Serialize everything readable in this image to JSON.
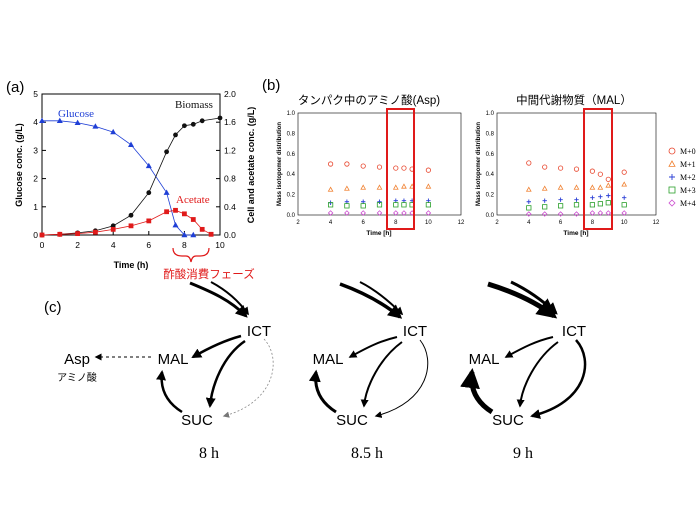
{
  "panel_a": {
    "label": "(a)",
    "chart_data": {
      "type": "line",
      "xlabel": "Time (h)",
      "ylabel_left": "Glucose conc. (g/L)",
      "ylabel_right": "Cell and acetate conc. (g/L)",
      "xlim": [
        0,
        10
      ],
      "ylim_left": [
        0,
        5
      ],
      "ylim_right": [
        0,
        2.0
      ],
      "x_ticks": [
        "0",
        "2",
        "4",
        "6",
        "8",
        "10"
      ],
      "y_left_ticks": [
        "0",
        "1",
        "2",
        "3",
        "4",
        "5"
      ],
      "y_right_ticks": [
        "0.0",
        "0.4",
        "0.8",
        "1.2",
        "1.6",
        "2.0"
      ],
      "series": [
        {
          "name": "Glucose",
          "axis": "left",
          "color": "#1f3fd6",
          "marker": "triangle",
          "x": [
            0,
            1,
            2,
            3,
            4,
            5,
            6,
            7,
            7.5,
            8,
            8.5
          ],
          "y": [
            4.05,
            4.05,
            3.98,
            3.85,
            3.65,
            3.2,
            2.45,
            1.5,
            0.35,
            0.0,
            0.0
          ]
        },
        {
          "name": "Biomass",
          "axis": "right",
          "color": "#111111",
          "marker": "circle",
          "x": [
            0,
            1,
            2,
            3,
            4,
            5,
            6,
            7,
            7.5,
            8,
            8.5,
            9,
            10
          ],
          "y": [
            0.0,
            0.01,
            0.03,
            0.06,
            0.13,
            0.28,
            0.6,
            1.18,
            1.42,
            1.55,
            1.57,
            1.62,
            1.66
          ]
        },
        {
          "name": "Acetate",
          "axis": "right",
          "color": "#e01a1a",
          "marker": "square",
          "x": [
            0,
            1,
            2,
            3,
            4,
            5,
            6,
            7,
            7.5,
            8,
            8.5,
            9,
            9.5
          ],
          "y": [
            0.0,
            0.01,
            0.02,
            0.04,
            0.08,
            0.13,
            0.2,
            0.33,
            0.35,
            0.3,
            0.22,
            0.08,
            0.01
          ]
        }
      ]
    },
    "annotation": "酢酸消費フェーズ"
  },
  "panel_b": {
    "label": "(b)",
    "legend": [
      "M+0",
      "M+1",
      "M+2",
      "M+3",
      "M+4"
    ],
    "legend_colors": [
      "#e8452c",
      "#f08030",
      "#2b3fd6",
      "#2aa02a",
      "#cc4fd0"
    ],
    "charts": [
      {
        "title": "タンパク中のアミノ酸(Asp)",
        "chart_data": {
          "type": "scatter",
          "xlabel": "Time [h]",
          "ylabel": "Mass isotopomer distribution",
          "xlim": [
            2,
            12
          ],
          "ylim": [
            0,
            1.0
          ],
          "x_ticks": [
            "2",
            "4",
            "6",
            "8",
            "10",
            "12"
          ],
          "y_ticks": [
            "0.0",
            "0.2",
            "0.4",
            "0.6",
            "0.8",
            "1.0"
          ],
          "x": [
            4,
            5,
            6,
            7,
            8,
            8.5,
            9,
            10
          ],
          "series": [
            {
              "name": "M+0",
              "values": [
                0.5,
                0.5,
                0.48,
                0.47,
                0.46,
                0.46,
                0.45,
                0.44
              ]
            },
            {
              "name": "M+1",
              "values": [
                0.25,
                0.26,
                0.27,
                0.27,
                0.27,
                0.28,
                0.28,
                0.28
              ]
            },
            {
              "name": "M+2",
              "values": [
                0.12,
                0.13,
                0.13,
                0.13,
                0.14,
                0.14,
                0.14,
                0.14
              ]
            },
            {
              "name": "M+3",
              "values": [
                0.1,
                0.09,
                0.09,
                0.1,
                0.1,
                0.1,
                0.1,
                0.1
              ]
            },
            {
              "name": "M+4",
              "values": [
                0.02,
                0.02,
                0.02,
                0.02,
                0.02,
                0.02,
                0.02,
                0.02
              ]
            }
          ],
          "highlight_x": [
            7.6,
            9.0
          ]
        }
      },
      {
        "title": "中間代謝物質（MAL）",
        "chart_data": {
          "type": "scatter",
          "xlabel": "Time [h]",
          "ylabel": "Mass isotopomer distribution",
          "xlim": [
            2,
            12
          ],
          "ylim": [
            0,
            1.0
          ],
          "x_ticks": [
            "2",
            "4",
            "6",
            "8",
            "10",
            "12"
          ],
          "y_ticks": [
            "0.0",
            "0.2",
            "0.4",
            "0.6",
            "0.8",
            "1.0"
          ],
          "x": [
            4,
            5,
            6,
            7,
            8,
            8.5,
            9,
            10
          ],
          "series": [
            {
              "name": "M+0",
              "values": [
                0.51,
                0.47,
                0.46,
                0.45,
                0.43,
                0.4,
                0.35,
                0.42
              ]
            },
            {
              "name": "M+1",
              "values": [
                0.25,
                0.26,
                0.27,
                0.27,
                0.27,
                0.27,
                0.29,
                0.3
              ]
            },
            {
              "name": "M+2",
              "values": [
                0.13,
                0.14,
                0.15,
                0.15,
                0.17,
                0.18,
                0.19,
                0.17
              ]
            },
            {
              "name": "M+3",
              "values": [
                0.07,
                0.08,
                0.09,
                0.1,
                0.1,
                0.11,
                0.12,
                0.1
              ]
            },
            {
              "name": "M+4",
              "values": [
                0.01,
                0.01,
                0.01,
                0.01,
                0.02,
                0.02,
                0.02,
                0.02
              ]
            }
          ],
          "highlight_x": [
            7.6,
            9.0
          ]
        }
      }
    ]
  },
  "panel_c": {
    "label": "(c)",
    "asp": "Asp",
    "asp_sub": "アミノ酸",
    "networks": [
      {
        "nodes": {
          "ict": "ICT",
          "mal": "MAL",
          "suc": "SUC"
        },
        "time": "8 h"
      },
      {
        "nodes": {
          "ict": "ICT",
          "mal": "MAL",
          "suc": "SUC"
        },
        "time": "8.5 h"
      },
      {
        "nodes": {
          "ict": "ICT",
          "mal": "MAL",
          "suc": "SUC"
        },
        "time": "9 h"
      }
    ]
  }
}
